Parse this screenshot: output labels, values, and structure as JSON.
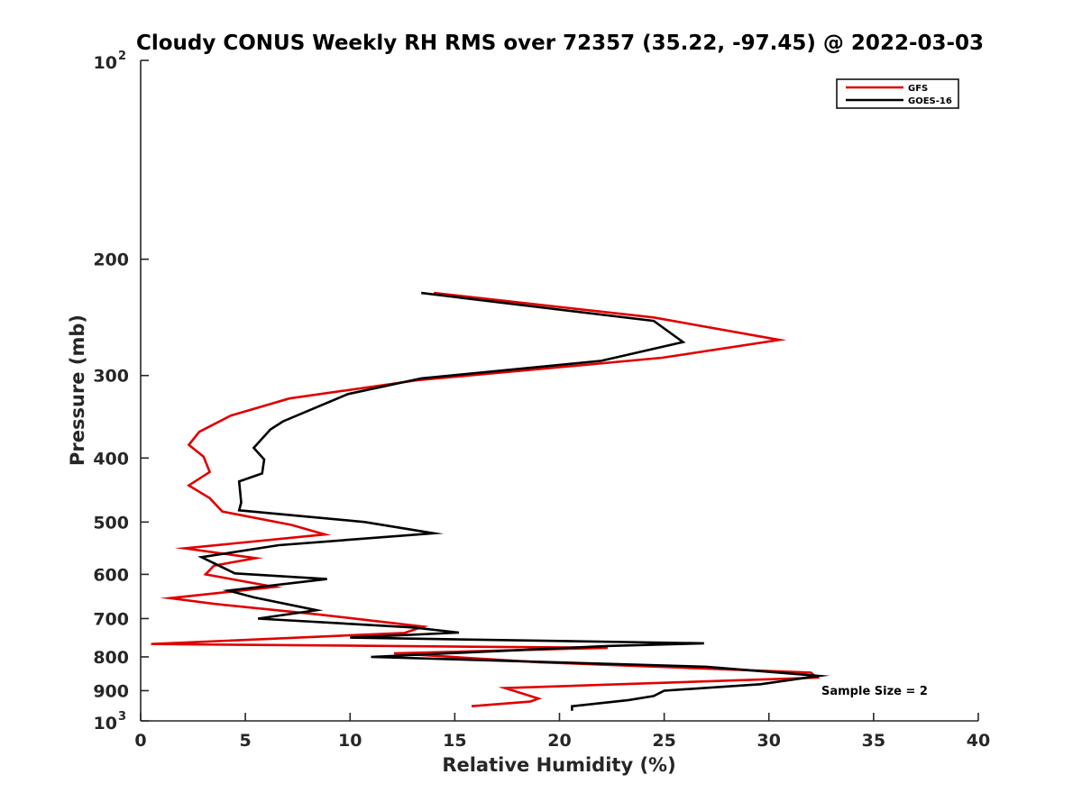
{
  "chart_data": {
    "type": "line",
    "title": "Cloudy CONUS Weekly RH RMS over 72357 (35.22, -97.45) @ 2022-03-03",
    "xlabel": "Relative Humidity (%)",
    "ylabel": "Pressure (mb)",
    "xlim": [
      0,
      40
    ],
    "ylim": [
      100,
      1000
    ],
    "y_scale": "log",
    "y_reversed": true,
    "x_ticks": [
      "0",
      "5",
      "10",
      "15",
      "20",
      "25",
      "30",
      "35",
      "40"
    ],
    "y_ticks": [
      {
        "value": 100,
        "label": "10",
        "exp": "2"
      },
      {
        "value": 200,
        "label": "200"
      },
      {
        "value": 300,
        "label": "300"
      },
      {
        "value": 400,
        "label": "400"
      },
      {
        "value": 500,
        "label": "500"
      },
      {
        "value": 600,
        "label": "600"
      },
      {
        "value": 700,
        "label": "700"
      },
      {
        "value": 800,
        "label": "800"
      },
      {
        "value": 900,
        "label": "900"
      },
      {
        "value": 1000,
        "label": "10",
        "exp": "3"
      }
    ],
    "grid": false,
    "legend_position": "top-right",
    "annotation": "Sample Size = 2",
    "series": [
      {
        "name": "GFS",
        "color": "#e00000",
        "points": [
          [
            14.0,
            225
          ],
          [
            24.5,
            245
          ],
          [
            30.5,
            265
          ],
          [
            24.9,
            282
          ],
          [
            13.2,
            305
          ],
          [
            7.1,
            325
          ],
          [
            4.3,
            345
          ],
          [
            2.8,
            365
          ],
          [
            2.3,
            382
          ],
          [
            3.0,
            398
          ],
          [
            3.3,
            420
          ],
          [
            2.3,
            440
          ],
          [
            3.3,
            460
          ],
          [
            3.9,
            482
          ],
          [
            7.2,
            505
          ],
          [
            8.8,
            522
          ],
          [
            2.1,
            548
          ],
          [
            5.5,
            567
          ],
          [
            3.5,
            582
          ],
          [
            3.1,
            600
          ],
          [
            6.4,
            627
          ],
          [
            1.4,
            652
          ],
          [
            3.5,
            665
          ],
          [
            8.5,
            690
          ],
          [
            13.5,
            720
          ],
          [
            12.6,
            736
          ],
          [
            0.5,
            765
          ],
          [
            22.3,
            775
          ],
          [
            12.1,
            790
          ],
          [
            19.0,
            815
          ],
          [
            32.0,
            845
          ],
          [
            32.3,
            860
          ],
          [
            17.4,
            892
          ],
          [
            19.0,
            925
          ],
          [
            18.6,
            935
          ],
          [
            15.8,
            950
          ]
        ]
      },
      {
        "name": "GOES-16",
        "color": "#000000",
        "points": [
          [
            13.4,
            225
          ],
          [
            24.5,
            248
          ],
          [
            25.9,
            267
          ],
          [
            22.0,
            285
          ],
          [
            13.4,
            303
          ],
          [
            9.9,
            320
          ],
          [
            6.8,
            352
          ],
          [
            6.2,
            362
          ],
          [
            5.4,
            386
          ],
          [
            5.9,
            402
          ],
          [
            5.8,
            422
          ],
          [
            4.7,
            434
          ],
          [
            4.8,
            467
          ],
          [
            4.7,
            480
          ],
          [
            10.7,
            500
          ],
          [
            14.0,
            520
          ],
          [
            6.6,
            542
          ],
          [
            2.9,
            565
          ],
          [
            4.5,
            598
          ],
          [
            8.9,
            610
          ],
          [
            4.2,
            635
          ],
          [
            5.4,
            650
          ],
          [
            8.4,
            680
          ],
          [
            5.6,
            700
          ],
          [
            13.0,
            722
          ],
          [
            15.2,
            735
          ],
          [
            10.0,
            748
          ],
          [
            26.9,
            763
          ],
          [
            22.4,
            770
          ],
          [
            11.0,
            800
          ],
          [
            27.0,
            828
          ],
          [
            32.4,
            855
          ],
          [
            29.6,
            880
          ],
          [
            25.0,
            900
          ],
          [
            24.5,
            917
          ],
          [
            23.3,
            930
          ],
          [
            20.6,
            950
          ],
          [
            20.6,
            965
          ]
        ]
      }
    ]
  }
}
